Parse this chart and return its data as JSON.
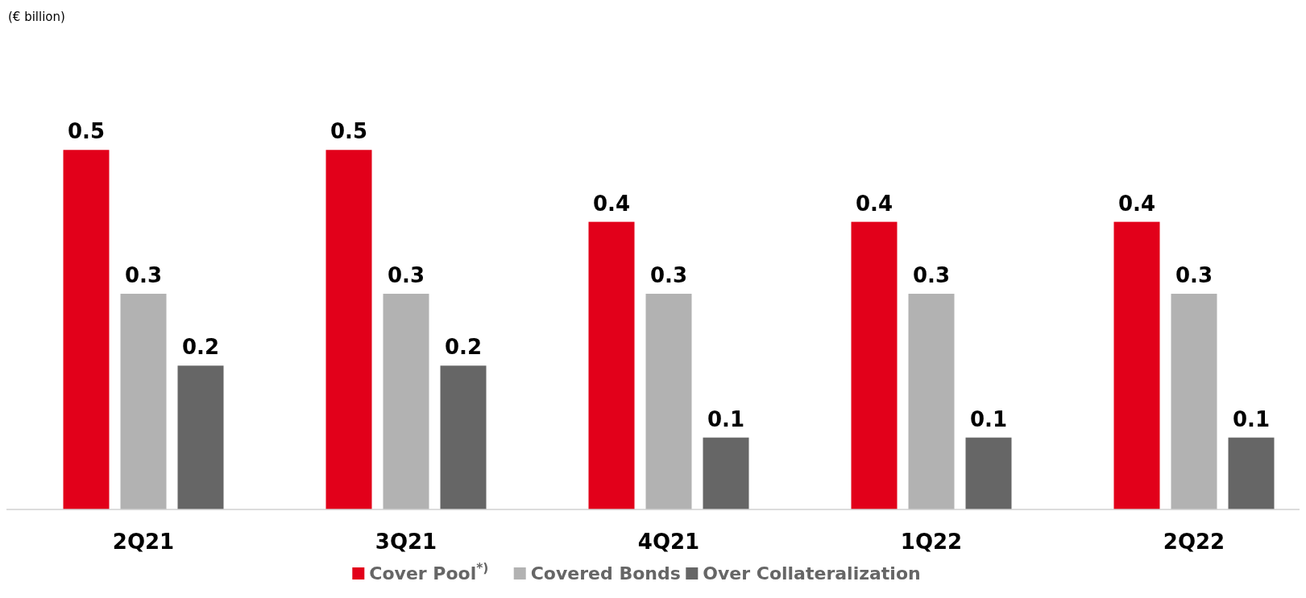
{
  "chart_data": {
    "type": "bar",
    "annotations": [
      "(€ billion)"
    ],
    "categories": [
      "2Q21",
      "3Q21",
      "4Q21",
      "1Q22",
      "2Q22"
    ],
    "series": [
      {
        "name": "Cover Pool$^{*)}$",
        "color": "#e2001a",
        "values": [
          0.5,
          0.5,
          0.4,
          0.4,
          0.4
        ]
      },
      {
        "name": "Covered Bonds",
        "color": "#b2b2b2",
        "values": [
          0.3,
          0.3,
          0.3,
          0.3,
          0.3
        ]
      },
      {
        "name": "Over Collateralization",
        "color": "#666666",
        "values": [
          0.2,
          0.2,
          0.1,
          0.1,
          0.1
        ]
      }
    ],
    "data_labels": true,
    "legend": "bottom"
  }
}
